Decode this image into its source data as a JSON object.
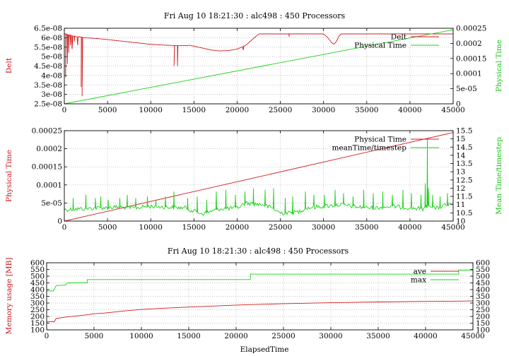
{
  "figure_title": "Fri Aug 10 18:21:30 : alc498 : 450 Processors",
  "colors": {
    "red": "#d01c1c",
    "green": "#18d018",
    "grid": "#b0b0b0"
  },
  "chart_data": [
    {
      "type": "line",
      "title": "Fri Aug 10 18:21:30 : alc498 : 450 Processors",
      "xlabel": "",
      "ylabel": "Delt",
      "y2label": "Physical Time",
      "xlim": [
        0,
        45000
      ],
      "ylim": [
        2.5e-08,
        6.5e-08
      ],
      "y2lim": [
        0,
        0.00025
      ],
      "xticks": [
        "0",
        "5000",
        "10000",
        "15000",
        "20000",
        "25000",
        "30000",
        "35000",
        "40000",
        "45000"
      ],
      "yticks": [
        "2.5e-08",
        "3e-08",
        "3.5e-08",
        "4e-08",
        "4.5e-08",
        "5e-08",
        "5.5e-08",
        "6e-08",
        "6.5e-08"
      ],
      "y2ticks": [
        "0",
        "5e-05",
        "0.0001",
        "0.00015",
        "0.0002",
        "0.00025"
      ],
      "grid": true,
      "legend": "top-right",
      "series": [
        {
          "name": "Delt",
          "axis": "y",
          "color": "#d01c1c",
          "x": [
            0,
            200,
            400,
            600,
            800,
            1000,
            1400,
            1800,
            2200,
            3000,
            4000,
            5000,
            6000,
            7000,
            8000,
            9000,
            10000,
            11000,
            12000,
            13000,
            14000,
            14500,
            15000,
            16000,
            17000,
            18000,
            19000,
            20000,
            21000,
            21500,
            22000,
            22500,
            25000,
            28000,
            30000,
            30500,
            31000,
            31200,
            31500,
            31800,
            32000,
            35000,
            38000,
            40000,
            42000,
            44000,
            45000
          ],
          "values": [
            6.2e-08,
            6.2e-08,
            6.15e-08,
            6.15e-08,
            6.1e-08,
            6.1e-08,
            6.05e-08,
            6.05e-08,
            6e-08,
            5.98e-08,
            5.95e-08,
            5.9e-08,
            5.85e-08,
            5.8e-08,
            5.75e-08,
            5.7e-08,
            5.65e-08,
            5.62e-08,
            5.6e-08,
            5.58e-08,
            5.58e-08,
            5.6e-08,
            5.55e-08,
            5.45e-08,
            5.35e-08,
            5.3e-08,
            5.32e-08,
            5.4e-08,
            5.6e-08,
            5.8e-08,
            6e-08,
            6.2e-08,
            6.2e-08,
            6.2e-08,
            6.2e-08,
            6e-08,
            5.7e-08,
            5.65e-08,
            5.8e-08,
            6.1e-08,
            6.2e-08,
            6.2e-08,
            6.2e-08,
            6.2e-08,
            6.2e-08,
            6.2e-08,
            6.2e-08
          ],
          "spikes": [
            {
              "x": 150,
              "low": 3.9e-08
            },
            {
              "x": 350,
              "low": 4.6e-08
            },
            {
              "x": 500,
              "low": 5.2e-08
            },
            {
              "x": 700,
              "low": 5.6e-08
            },
            {
              "x": 900,
              "low": 5.4e-08
            },
            {
              "x": 1150,
              "low": 5.8e-08
            },
            {
              "x": 1550,
              "low": 5.6e-08
            },
            {
              "x": 1950,
              "low": 3.4e-08
            },
            {
              "x": 2050,
              "low": 2.9e-08
            },
            {
              "x": 12700,
              "low": 4.5e-08
            },
            {
              "x": 13100,
              "low": 4.5e-08
            },
            {
              "x": 20700,
              "low": 5.35e-08
            },
            {
              "x": 26000,
              "low": 6.05e-08
            }
          ]
        },
        {
          "name": "Physical Time",
          "axis": "y2",
          "color": "#18d018",
          "x": [
            0,
            45000
          ],
          "values": [
            0,
            0.000245
          ]
        }
      ]
    },
    {
      "type": "line",
      "title": "",
      "xlabel": "",
      "ylabel": "Physical Time",
      "y2label": "Mean Time/timestep",
      "xlim": [
        0,
        45000
      ],
      "ylim": [
        0,
        0.00025
      ],
      "y2lim": [
        10,
        15.5
      ],
      "xticks": [
        "0",
        "5000",
        "10000",
        "15000",
        "20000",
        "25000",
        "30000",
        "35000",
        "40000",
        "45000"
      ],
      "yticks": [
        "0",
        "5e-05",
        "0.0001",
        "0.00015",
        "0.0002",
        "0.00025"
      ],
      "y2ticks": [
        "10",
        "10.5",
        "11",
        "11.5",
        "12",
        "12.5",
        "13",
        "13.5",
        "14",
        "14.5",
        "15",
        "15.5"
      ],
      "grid": true,
      "legend": "top-right",
      "series": [
        {
          "name": "Physical Time",
          "axis": "y",
          "color": "#d01c1c",
          "x": [
            0,
            45000
          ],
          "values": [
            0,
            0.000245
          ]
        },
        {
          "name": "meanTime/timestep",
          "axis": "y2",
          "color": "#18d018",
          "x": [
            0,
            2000,
            4000,
            6000,
            8000,
            10000,
            12000,
            14000,
            15000,
            16000,
            18000,
            20000,
            21000,
            22000,
            23000,
            24000,
            25000,
            26000,
            27000,
            28000,
            30000,
            32000,
            34000,
            36000,
            38000,
            40000,
            41500,
            42300,
            43000,
            44000,
            45000
          ],
          "values": [
            10.7,
            10.75,
            10.8,
            10.85,
            10.8,
            10.9,
            10.85,
            10.8,
            10.6,
            10.45,
            10.75,
            10.8,
            11.1,
            11.05,
            11.0,
            10.8,
            10.5,
            10.5,
            10.55,
            10.8,
            10.9,
            11.0,
            10.85,
            10.8,
            10.9,
            10.8,
            10.75,
            11.0,
            10.75,
            10.95,
            11.0
          ],
          "spikes": [
            {
              "x": 1000,
              "high": 11.4
            },
            {
              "x": 2500,
              "high": 11.6
            },
            {
              "x": 3500,
              "high": 11.4
            },
            {
              "x": 4200,
              "high": 11.5
            },
            {
              "x": 5000,
              "high": 11.3
            },
            {
              "x": 6400,
              "high": 11.4
            },
            {
              "x": 7300,
              "high": 11.6
            },
            {
              "x": 8200,
              "high": 11.4
            },
            {
              "x": 9600,
              "high": 11.5
            },
            {
              "x": 10500,
              "high": 11.3
            },
            {
              "x": 11700,
              "high": 11.5
            },
            {
              "x": 12700,
              "high": 11.8
            },
            {
              "x": 14200,
              "high": 11.4
            },
            {
              "x": 15300,
              "high": 11.5
            },
            {
              "x": 16500,
              "high": 11.3
            },
            {
              "x": 17600,
              "high": 11.8
            },
            {
              "x": 18700,
              "high": 11.9
            },
            {
              "x": 19800,
              "high": 11.6
            },
            {
              "x": 20900,
              "high": 11.8
            },
            {
              "x": 21800,
              "high": 12.0
            },
            {
              "x": 23200,
              "high": 11.9
            },
            {
              "x": 24200,
              "high": 12.0
            },
            {
              "x": 25500,
              "high": 11.4
            },
            {
              "x": 26400,
              "high": 11.5
            },
            {
              "x": 27800,
              "high": 11.8
            },
            {
              "x": 28900,
              "high": 11.6
            },
            {
              "x": 30100,
              "high": 11.6
            },
            {
              "x": 31300,
              "high": 11.9
            },
            {
              "x": 32300,
              "high": 11.7
            },
            {
              "x": 33400,
              "high": 11.5
            },
            {
              "x": 34600,
              "high": 11.9
            },
            {
              "x": 35700,
              "high": 11.7
            },
            {
              "x": 36800,
              "high": 11.8
            },
            {
              "x": 37900,
              "high": 11.6
            },
            {
              "x": 39100,
              "high": 11.9
            },
            {
              "x": 40100,
              "high": 11.7
            },
            {
              "x": 41200,
              "high": 11.6
            },
            {
              "x": 41700,
              "high": 12.3
            },
            {
              "x": 41950,
              "high": 15.0
            },
            {
              "x": 42150,
              "high": 12.0
            },
            {
              "x": 42600,
              "high": 11.6
            },
            {
              "x": 43400,
              "high": 11.5
            },
            {
              "x": 44300,
              "high": 11.7
            }
          ]
        }
      ]
    },
    {
      "type": "line",
      "title": "Fri Aug 10 18:21:30 : alc498 : 450 Processors",
      "xlabel": "ElapsedTime",
      "ylabel": "Memory usage [MB]",
      "y2label": "",
      "xlim": [
        0,
        45000
      ],
      "ylim": [
        100,
        600
      ],
      "y2lim": [
        100,
        600
      ],
      "xticks": [
        "0",
        "5000",
        "10000",
        "15000",
        "20000",
        "25000",
        "30000",
        "35000",
        "40000",
        "45000"
      ],
      "yticks": [
        "100",
        "150",
        "200",
        "250",
        "300",
        "350",
        "400",
        "450",
        "500",
        "550",
        "600"
      ],
      "y2ticks": [
        "100",
        "150",
        "200",
        "250",
        "300",
        "350",
        "400",
        "450",
        "500",
        "550",
        "600"
      ],
      "grid": true,
      "legend": "top-right",
      "series": [
        {
          "name": "ave",
          "axis": "y",
          "color": "#d01c1c",
          "x": [
            0,
            300,
            800,
            1000,
            2000,
            4000,
            5000,
            6000,
            7000,
            8000,
            10000,
            12000,
            15000,
            20000,
            25000,
            30000,
            35000,
            40000,
            45000
          ],
          "values": [
            160,
            162,
            160,
            185,
            195,
            210,
            220,
            225,
            232,
            240,
            252,
            260,
            270,
            285,
            295,
            302,
            308,
            312,
            315
          ]
        },
        {
          "name": "max",
          "axis": "y",
          "color": "#18d018",
          "x": [
            0,
            700,
            1000,
            2000,
            2200,
            4300,
            4300,
            21500,
            21500,
            43500,
            43500,
            45000
          ],
          "values": [
            390,
            390,
            430,
            435,
            450,
            450,
            475,
            475,
            515,
            515,
            545,
            545
          ]
        }
      ]
    }
  ]
}
